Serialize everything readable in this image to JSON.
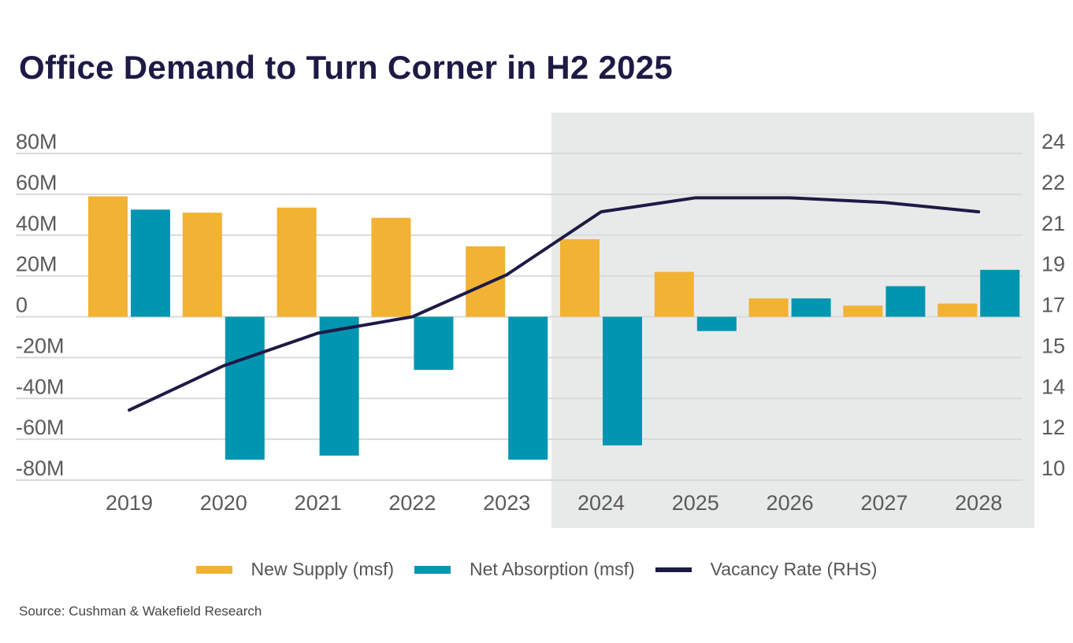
{
  "chart_data": {
    "type": "bar",
    "title": "Office Demand to Turn Corner in H2 2025",
    "categories": [
      "2019",
      "2020",
      "2021",
      "2022",
      "2023",
      "2024",
      "2025",
      "2026",
      "2027",
      "2028"
    ],
    "series": [
      {
        "name": "New Supply (msf)",
        "kind": "bar",
        "axis": "left",
        "color": "#f2b233",
        "values": [
          59,
          51,
          53.5,
          48.5,
          34.5,
          38,
          22,
          9,
          5.5,
          6.5
        ]
      },
      {
        "name": "Net Absorption (msf)",
        "kind": "bar",
        "axis": "left",
        "color": "#0095b0",
        "values": [
          52.5,
          -70,
          -68,
          -26,
          -70,
          -63,
          -7,
          9,
          15,
          23
        ]
      },
      {
        "name": "Vacancy Rate (RHS)",
        "kind": "line",
        "axis": "right",
        "color": "#1d1a45",
        "values": [
          13.0,
          14.9,
          16.3,
          17.0,
          18.8,
          21.5,
          22.1,
          22.1,
          21.9,
          21.5
        ]
      }
    ],
    "ylim_left": [
      -80,
      80
    ],
    "yticks_left": [
      "80M",
      "60M",
      "40M",
      "20M",
      "0",
      "-20M",
      "-40M",
      "-60M",
      "-80M"
    ],
    "ylim_right": [
      10,
      24
    ],
    "yticks_right": [
      "24",
      "22",
      "21",
      "19",
      "17",
      "15",
      "14",
      "12",
      "10"
    ],
    "forecast_shading_from": "2024",
    "forecast_color": "#e8eaea",
    "grid": true,
    "legend_position": "bottom"
  },
  "source": "Source: Cushman & Wakefield Research"
}
